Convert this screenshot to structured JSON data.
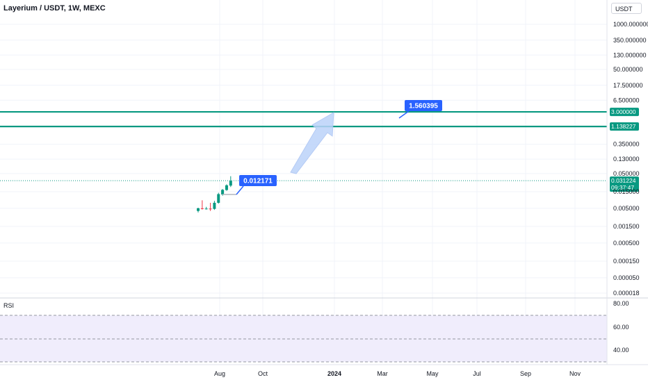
{
  "header": {
    "title": "Layerium / USDT, 1W, MEXC",
    "currency_button": "USDT"
  },
  "chart_data": {
    "type": "candlestick",
    "title": "Layerium / USDT, 1W, MEXC",
    "scale": "log",
    "ylim": [
      1.8e-05,
      1000
    ],
    "y_ticks": [
      "1000.000000",
      "350.000000",
      "130.000000",
      "50.000000",
      "17.500000",
      "6.500000",
      "0.350000",
      "0.130000",
      "0.050000",
      "0.015000",
      "0.005000",
      "0.001500",
      "0.000500",
      "0.000150",
      "0.000050",
      "0.000018"
    ],
    "x_ticks": [
      "Aug",
      "Oct",
      "2024",
      "Mar",
      "May",
      "Jul",
      "Sep",
      "Nov"
    ],
    "candles": [
      {
        "o": 0.0042,
        "h": 0.0052,
        "l": 0.0038,
        "c": 0.005
      },
      {
        "o": 0.005,
        "h": 0.0085,
        "l": 0.0046,
        "c": 0.0049
      },
      {
        "o": 0.0048,
        "h": 0.0055,
        "l": 0.0046,
        "c": 0.0049
      },
      {
        "o": 0.0049,
        "h": 0.0072,
        "l": 0.0042,
        "c": 0.0048
      },
      {
        "o": 0.0048,
        "h": 0.0082,
        "l": 0.0045,
        "c": 0.0072
      },
      {
        "o": 0.0072,
        "h": 0.014,
        "l": 0.0068,
        "c": 0.0128
      },
      {
        "o": 0.0125,
        "h": 0.018,
        "l": 0.0115,
        "c": 0.017
      },
      {
        "o": 0.0168,
        "h": 0.0245,
        "l": 0.016,
        "c": 0.023
      },
      {
        "o": 0.0225,
        "h": 0.042,
        "l": 0.0205,
        "c": 0.031
      }
    ],
    "horizontal_levels": [
      {
        "value": 3.0,
        "label": "3.000000",
        "color": "#089981"
      },
      {
        "value": 1.138227,
        "label": "1.138227",
        "color": "#089981"
      }
    ],
    "last_price": {
      "value": 0.031224,
      "label": "0.031224",
      "countdown": "09:37:47",
      "color": "#089981"
    },
    "callouts": [
      {
        "label": "0.012171",
        "color": "#2962ff"
      },
      {
        "label": "1.560395",
        "color": "#2962ff"
      }
    ],
    "projection_arrow": {
      "color": "#bcd3fa"
    }
  },
  "rsi": {
    "label": "RSI",
    "ticks": [
      "80.00",
      "60.00",
      "40.00"
    ],
    "band_color": "#f0edfc",
    "line_color": "#7e57c2"
  },
  "colors": {
    "up": "#089981",
    "down": "#f23645",
    "grid": "#f0f3fa",
    "axis_text": "#131722"
  }
}
